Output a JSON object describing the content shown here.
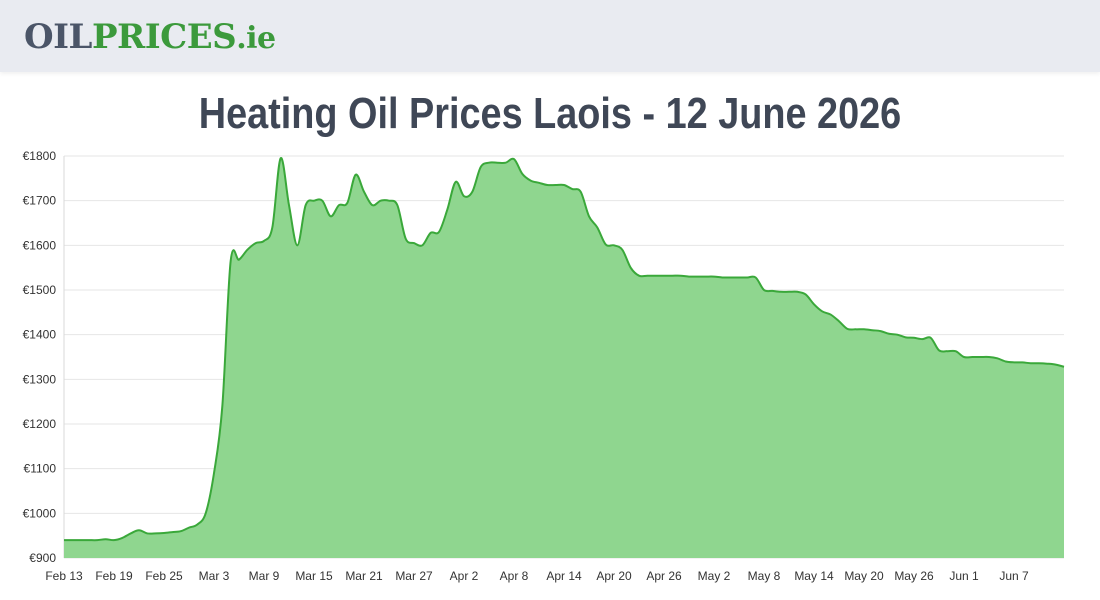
{
  "logo": {
    "part1": "OIL",
    "part2": "PRICES",
    "part3": ".ie"
  },
  "colors": {
    "header_bg": "#e9ebf1",
    "logo_grey": "#4b5568",
    "logo_green": "#3c9a3c",
    "line": "#3aa83a",
    "fill": "#8fd68f",
    "grid": "#e6e6e6"
  },
  "chart_data": {
    "type": "area",
    "title": "Heating Oil Prices Laois - 12 June 2026",
    "xlabel": "",
    "ylabel": "",
    "ylim": [
      900,
      1800
    ],
    "yticks": [
      "€900",
      "€1000",
      "€1100",
      "€1200",
      "€1300",
      "€1400",
      "€1500",
      "€1600",
      "€1700",
      "€1800"
    ],
    "yticks_values": [
      900,
      1000,
      1100,
      1200,
      1300,
      1400,
      1500,
      1600,
      1700,
      1800
    ],
    "xticks": [
      "Feb 13",
      "Feb 19",
      "Feb 25",
      "Mar 3",
      "Mar 9",
      "Mar 15",
      "Mar 21",
      "Mar 27",
      "Apr 2",
      "Apr 8",
      "Apr 14",
      "Apr 20",
      "Apr 26",
      "May 2",
      "May 8",
      "May 14",
      "May 20",
      "May 26",
      "Jun 1",
      "Jun 7"
    ],
    "x_start": "Feb 13",
    "x_end": "Jun 12",
    "grid": true,
    "series": [
      {
        "values": [
          940,
          940,
          940,
          940,
          940,
          942,
          940,
          945,
          955,
          962,
          955,
          955,
          956,
          958,
          960,
          968,
          975,
          1000,
          1090,
          1240,
          1565,
          1568,
          1590,
          1605,
          1610,
          1640,
          1795,
          1690,
          1600,
          1690,
          1700,
          1700,
          1665,
          1690,
          1695,
          1758,
          1720,
          1690,
          1700,
          1700,
          1690,
          1615,
          1605,
          1600,
          1628,
          1630,
          1680,
          1742,
          1710,
          1720,
          1775,
          1785,
          1785,
          1785,
          1793,
          1760,
          1745,
          1740,
          1735,
          1735,
          1735,
          1726,
          1720,
          1665,
          1640,
          1602,
          1600,
          1590,
          1550,
          1532,
          1532,
          1532,
          1532,
          1532,
          1532,
          1530,
          1530,
          1530,
          1530,
          1528,
          1528,
          1528,
          1528,
          1528,
          1500,
          1498,
          1496,
          1496,
          1496,
          1490,
          1468,
          1452,
          1445,
          1430,
          1413,
          1412,
          1412,
          1410,
          1408,
          1402,
          1400,
          1394,
          1393,
          1390,
          1393,
          1365,
          1363,
          1363,
          1350,
          1350,
          1350,
          1350,
          1347,
          1340,
          1338,
          1338,
          1336,
          1336,
          1335,
          1333,
          1328
        ]
      }
    ]
  }
}
